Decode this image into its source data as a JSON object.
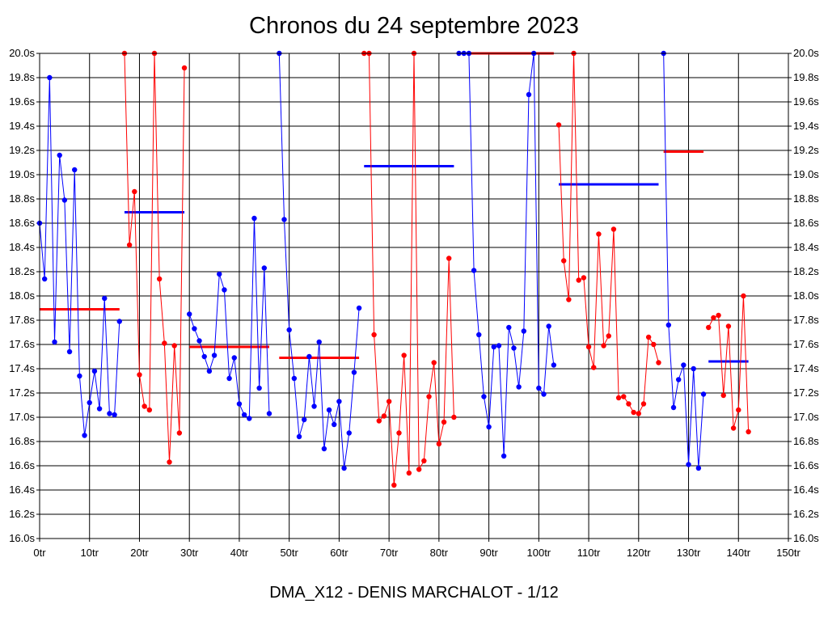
{
  "title": "Chronos du 24 septembre 2023",
  "footer": "DMA_X12 - DENIS MARCHALOT - 1/12",
  "chart_data": {
    "type": "line",
    "title": "Chronos du 24 septembre 2023",
    "xlabel": "",
    "ylabel": "",
    "xlim": [
      0,
      150
    ],
    "ylim": [
      16.0,
      20.0
    ],
    "grid": true,
    "legend": "none",
    "x_ticks": [
      "0tr",
      "10tr",
      "20tr",
      "30tr",
      "40tr",
      "50tr",
      "60tr",
      "70tr",
      "80tr",
      "90tr",
      "100tr",
      "110tr",
      "120tr",
      "130tr",
      "140tr",
      "150tr"
    ],
    "y_ticks": [
      "16.0s",
      "16.2s",
      "16.4s",
      "16.6s",
      "16.8s",
      "17.0s",
      "17.2s",
      "17.4s",
      "17.6s",
      "17.8s",
      "18.0s",
      "18.2s",
      "18.4s",
      "18.6s",
      "18.8s",
      "19.0s",
      "19.2s",
      "19.4s",
      "19.6s",
      "19.8s",
      "20.0s"
    ],
    "colors": {
      "blue": "#0000ff",
      "red": "#ff0000"
    },
    "series": [
      {
        "color": "#0000ff",
        "x_start": 0,
        "values": [
          18.6,
          18.14,
          19.8,
          17.62,
          19.16,
          18.79,
          17.54,
          19.04,
          17.34,
          16.85,
          17.12,
          17.38,
          17.07,
          17.98,
          17.03,
          17.02,
          17.79
        ]
      },
      {
        "color": "#ff0000",
        "x_start": 17,
        "values": [
          20.0,
          18.42,
          18.86,
          17.35,
          17.09,
          17.06,
          20.0,
          18.14,
          17.61,
          16.63,
          17.59,
          16.87,
          19.88
        ]
      },
      {
        "color": "#0000ff",
        "x_start": 30,
        "values": [
          17.85,
          17.73,
          17.63,
          17.5,
          17.38,
          17.51,
          18.18,
          18.05,
          17.32,
          17.49,
          17.11,
          17.02,
          16.99,
          18.64,
          17.24,
          18.23,
          17.03
        ]
      },
      {
        "color": "#0000ff",
        "x_start": 48,
        "values": [
          20.0,
          18.63,
          17.72,
          17.32,
          16.84,
          16.98,
          17.5,
          17.09,
          17.62,
          16.74,
          17.06,
          16.94,
          17.13,
          16.58,
          16.87,
          17.37,
          17.9
        ]
      },
      {
        "color": "#ff0000",
        "x_start": 65,
        "values": [
          20.0,
          20.0,
          17.68,
          16.97,
          17.01,
          17.13,
          16.44,
          16.87,
          17.51,
          16.54,
          20.0,
          16.57,
          16.64,
          17.17,
          17.45,
          16.78,
          16.96,
          18.31,
          17.0
        ]
      },
      {
        "color": "#0000ff",
        "x_start": 84,
        "values": [
          20.0,
          20.0,
          20.0,
          18.21,
          17.68,
          17.17,
          16.92,
          17.58,
          17.59,
          16.68,
          17.74,
          17.57,
          17.25,
          17.71,
          19.66,
          20.0,
          17.24,
          17.19,
          17.75,
          17.43
        ]
      },
      {
        "color": "#ff0000",
        "x_start": 104,
        "values": [
          19.41,
          18.29,
          17.97,
          20.0,
          18.13,
          18.15,
          17.58,
          17.41,
          18.51,
          17.59,
          17.67,
          18.55,
          17.16,
          17.17,
          17.11,
          17.04,
          17.03,
          17.11,
          17.66,
          17.6,
          17.45
        ]
      },
      {
        "color": "#0000ff",
        "x_start": 125,
        "values": [
          20.0,
          17.76,
          17.08,
          17.31,
          17.43,
          16.61,
          17.4,
          16.58,
          17.19
        ]
      },
      {
        "color": "#ff0000",
        "x_start": 134,
        "values": [
          17.74,
          17.82,
          17.84,
          17.18,
          17.75,
          16.91,
          17.06,
          18.0,
          16.88
        ]
      }
    ],
    "averages": [
      {
        "color": "#ff0000",
        "from": 0,
        "to": 16,
        "value": 17.89
      },
      {
        "color": "#0000ff",
        "from": 17,
        "to": 29,
        "value": 18.69
      },
      {
        "color": "#ff0000",
        "from": 30,
        "to": 46,
        "value": 17.58
      },
      {
        "color": "#ff0000",
        "from": 48,
        "to": 64,
        "value": 17.49
      },
      {
        "color": "#0000ff",
        "from": 65,
        "to": 83,
        "value": 19.07
      },
      {
        "color": "#ff0000",
        "from": 86,
        "to": 103,
        "value": 20.0
      },
      {
        "color": "#0000ff",
        "from": 104,
        "to": 124,
        "value": 18.92
      },
      {
        "color": "#ff0000",
        "from": 125,
        "to": 133,
        "value": 19.19
      },
      {
        "color": "#0000ff",
        "from": 134,
        "to": 142,
        "value": 17.46
      }
    ]
  }
}
